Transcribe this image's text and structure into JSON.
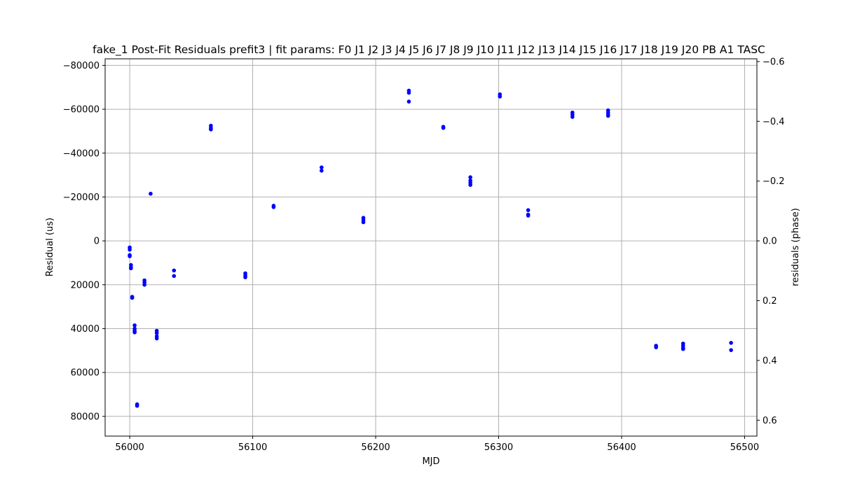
{
  "chart_data": {
    "type": "scatter",
    "title": "fake_1 Post-Fit Residuals prefit3 | fit params: F0 J1 J2 J3 J4 J5 J6 J7 J8 J9 J10 J11 J12 J13 J14 J15 J16 J17 J18 J19 J20 PB A1 TASC",
    "xlabel": "MJD",
    "ylabel": "Residual (us)",
    "ylabel_right": "residuals (phase)",
    "xlim": [
      55980,
      56510
    ],
    "ylim": [
      -83000,
      89000
    ],
    "y_inverted": true,
    "ylim_right": [
      -0.6092,
      0.6532
    ],
    "y_right_inverted": true,
    "x_ticks": [
      56000,
      56100,
      56200,
      56300,
      56400,
      56500
    ],
    "x_tick_labels": [
      "56000",
      "56100",
      "56200",
      "56300",
      "56400",
      "56500"
    ],
    "y_ticks": [
      -80000,
      -60000,
      -40000,
      -20000,
      0,
      20000,
      40000,
      60000,
      80000
    ],
    "y_tick_labels": [
      "−80000",
      "−60000",
      "−40000",
      "−20000",
      "0",
      "20000",
      "40000",
      "60000",
      "80000"
    ],
    "y_right_ticks": [
      -0.6,
      -0.4,
      -0.2,
      0.0,
      0.2,
      0.4,
      0.6
    ],
    "y_right_tick_labels": [
      "−0.6",
      "−0.4",
      "−0.2",
      "0.0",
      "0.2",
      "0.4",
      "0.6"
    ],
    "grid": true,
    "marker_color": "#0000ff",
    "points": [
      {
        "x": 56000,
        "y": 3000
      },
      {
        "x": 56000,
        "y": 4000
      },
      {
        "x": 56000,
        "y": 6500
      },
      {
        "x": 56000,
        "y": 7000
      },
      {
        "x": 56001,
        "y": 11000
      },
      {
        "x": 56001,
        "y": 12000
      },
      {
        "x": 56001,
        "y": 12500
      },
      {
        "x": 56002,
        "y": 25500
      },
      {
        "x": 56002,
        "y": 26000
      },
      {
        "x": 56004,
        "y": 38500
      },
      {
        "x": 56004,
        "y": 40000
      },
      {
        "x": 56004,
        "y": 41000
      },
      {
        "x": 56004,
        "y": 41700
      },
      {
        "x": 56006,
        "y": 74500
      },
      {
        "x": 56006,
        "y": 75200
      },
      {
        "x": 56012,
        "y": 18000
      },
      {
        "x": 56012,
        "y": 19000
      },
      {
        "x": 56012,
        "y": 20000
      },
      {
        "x": 56017,
        "y": -21500
      },
      {
        "x": 56022,
        "y": 41000
      },
      {
        "x": 56022,
        "y": 42000
      },
      {
        "x": 56022,
        "y": 43500
      },
      {
        "x": 56022,
        "y": 44500
      },
      {
        "x": 56036,
        "y": 13500
      },
      {
        "x": 56036,
        "y": 16000
      },
      {
        "x": 56066,
        "y": -52500
      },
      {
        "x": 56066,
        "y": -51500
      },
      {
        "x": 56066,
        "y": -50800
      },
      {
        "x": 56094,
        "y": 14800
      },
      {
        "x": 56094,
        "y": 15800
      },
      {
        "x": 56094,
        "y": 16600
      },
      {
        "x": 56117,
        "y": -16000
      },
      {
        "x": 56117,
        "y": -15400
      },
      {
        "x": 56156,
        "y": -33500
      },
      {
        "x": 56156,
        "y": -32000
      },
      {
        "x": 56190,
        "y": -10500
      },
      {
        "x": 56190,
        "y": -9500
      },
      {
        "x": 56190,
        "y": -8500
      },
      {
        "x": 56227,
        "y": -68500
      },
      {
        "x": 56227,
        "y": -67500
      },
      {
        "x": 56227,
        "y": -63500
      },
      {
        "x": 56255,
        "y": -52000
      },
      {
        "x": 56255,
        "y": -51500
      },
      {
        "x": 56277,
        "y": -29000
      },
      {
        "x": 56277,
        "y": -27500
      },
      {
        "x": 56277,
        "y": -26500
      },
      {
        "x": 56277,
        "y": -25500
      },
      {
        "x": 56301,
        "y": -66800
      },
      {
        "x": 56301,
        "y": -65800
      },
      {
        "x": 56324,
        "y": -14000
      },
      {
        "x": 56324,
        "y": -12000
      },
      {
        "x": 56324,
        "y": -11500
      },
      {
        "x": 56360,
        "y": -58500
      },
      {
        "x": 56360,
        "y": -57500
      },
      {
        "x": 56360,
        "y": -56500
      },
      {
        "x": 56389,
        "y": -59500
      },
      {
        "x": 56389,
        "y": -58500
      },
      {
        "x": 56389,
        "y": -57500
      },
      {
        "x": 56389,
        "y": -57000
      },
      {
        "x": 56428,
        "y": 47800
      },
      {
        "x": 56428,
        "y": 48500
      },
      {
        "x": 56450,
        "y": 46800
      },
      {
        "x": 56450,
        "y": 47800
      },
      {
        "x": 56450,
        "y": 48800
      },
      {
        "x": 56450,
        "y": 49300
      },
      {
        "x": 56489,
        "y": 46500
      },
      {
        "x": 56489,
        "y": 49800
      }
    ]
  }
}
